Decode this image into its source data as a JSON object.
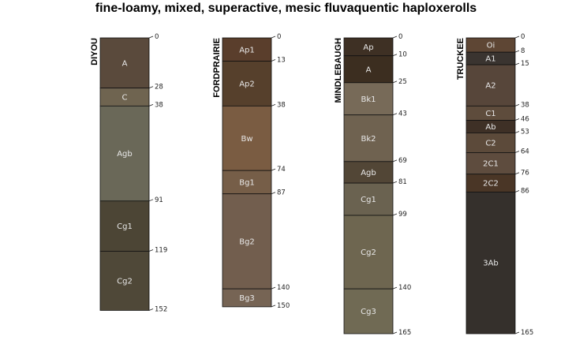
{
  "title": "fine-loamy, mixed, superactive, mesic fluvaquentic haploxerolls",
  "profiles": [
    {
      "name": "DIYOU",
      "horizons": [
        {
          "name": "A",
          "top": 0,
          "bottom": 28,
          "color": "#5a4a3c"
        },
        {
          "name": "C",
          "top": 28,
          "bottom": 38,
          "color": "#6f6450"
        },
        {
          "name": "Agb",
          "top": 38,
          "bottom": 91,
          "color": "#6a6858"
        },
        {
          "name": "Cg1",
          "top": 91,
          "bottom": 119,
          "color": "#4c4535"
        },
        {
          "name": "Cg2",
          "top": 119,
          "bottom": 152,
          "color": "#4f4838"
        }
      ]
    },
    {
      "name": "FORDPRAIRIE",
      "horizons": [
        {
          "name": "Ap1",
          "top": 0,
          "bottom": 13,
          "color": "#5a3e2c"
        },
        {
          "name": "Ap2",
          "top": 13,
          "bottom": 38,
          "color": "#56402c"
        },
        {
          "name": "Bw",
          "top": 38,
          "bottom": 74,
          "color": "#7a5c42"
        },
        {
          "name": "Bg1",
          "top": 74,
          "bottom": 87,
          "color": "#765e48"
        },
        {
          "name": "Bg2",
          "top": 87,
          "bottom": 140,
          "color": "#725e4e"
        },
        {
          "name": "Bg3",
          "top": 140,
          "bottom": 150,
          "color": "#766454"
        }
      ]
    },
    {
      "name": "MINDLEBAUGH",
      "horizons": [
        {
          "name": "Ap",
          "top": 0,
          "bottom": 10,
          "color": "#3e3024"
        },
        {
          "name": "A",
          "top": 10,
          "bottom": 25,
          "color": "#3c2e20"
        },
        {
          "name": "Bk1",
          "top": 25,
          "bottom": 43,
          "color": "#776a58"
        },
        {
          "name": "Bk2",
          "top": 43,
          "bottom": 69,
          "color": "#6f6250"
        },
        {
          "name": "Agb",
          "top": 69,
          "bottom": 81,
          "color": "#524636"
        },
        {
          "name": "Cg1",
          "top": 81,
          "bottom": 99,
          "color": "#6a6250"
        },
        {
          "name": "Cg2",
          "top": 99,
          "bottom": 140,
          "color": "#6e6650"
        },
        {
          "name": "Cg3",
          "top": 140,
          "bottom": 165,
          "color": "#706a54"
        }
      ]
    },
    {
      "name": "TRUCKEE",
      "horizons": [
        {
          "name": "Oi",
          "top": 0,
          "bottom": 8,
          "color": "#5e4634"
        },
        {
          "name": "A1",
          "top": 8,
          "bottom": 15,
          "color": "#3a3430"
        },
        {
          "name": "A2",
          "top": 15,
          "bottom": 38,
          "color": "#57463a"
        },
        {
          "name": "C1",
          "top": 38,
          "bottom": 46,
          "color": "#5e4c3c"
        },
        {
          "name": "Ab",
          "top": 46,
          "bottom": 53,
          "color": "#3e3026"
        },
        {
          "name": "C2",
          "top": 53,
          "bottom": 64,
          "color": "#5c4a3a"
        },
        {
          "name": "2C1",
          "top": 64,
          "bottom": 76,
          "color": "#5e4c3e"
        },
        {
          "name": "2C2",
          "top": 76,
          "bottom": 86,
          "color": "#4a3626"
        },
        {
          "name": "3Ab",
          "top": 86,
          "bottom": 165,
          "color": "#35302c"
        }
      ]
    }
  ]
}
